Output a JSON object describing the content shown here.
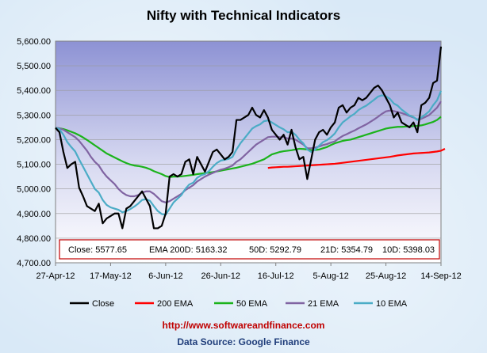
{
  "chart_data": {
    "type": "line",
    "title": "Nifty with Technical Indicators",
    "ylim": [
      4700,
      5600
    ],
    "yticks": [
      "5,600.00",
      "5,500.00",
      "5,400.00",
      "5,300.00",
      "5,200.00",
      "5,100.00",
      "5,000.00",
      "4,900.00",
      "4,800.00",
      "4,700.00"
    ],
    "ytick_values": [
      5600,
      5500,
      5400,
      5300,
      5200,
      5100,
      5000,
      4900,
      4800,
      4700
    ],
    "xticks": [
      "27-Apr-12",
      "17-May-12",
      "6-Jun-12",
      "26-Jun-12",
      "16-Jul-12",
      "5-Aug-12",
      "25-Aug-12",
      "14-Sep-12"
    ],
    "xtick_index": [
      0,
      14,
      28,
      42,
      56,
      70,
      84,
      98
    ],
    "n_points": 99,
    "grid": true,
    "legend_position": "bottom",
    "info_box": {
      "close": "Close: 5577.65",
      "ema200": "EMA  200D: 5163.32",
      "ema50": "50D: 5292.79",
      "ema21": "21D: 5354.79",
      "ema10": "10D: 5398.03"
    },
    "series": [
      {
        "name": "Close",
        "color": "#000000",
        "start": 0,
        "width": 2.2,
        "values": [
          5248,
          5230,
          5150,
          5085,
          5100,
          5110,
          5005,
          4970,
          4930,
          4920,
          4910,
          4940,
          4860,
          4880,
          4890,
          4900,
          4900,
          4840,
          4920,
          4930,
          4950,
          4970,
          4990,
          4960,
          4930,
          4840,
          4840,
          4850,
          4900,
          5050,
          5060,
          5050,
          5060,
          5110,
          5120,
          5060,
          5130,
          5100,
          5070,
          5110,
          5150,
          5160,
          5140,
          5120,
          5130,
          5150,
          5280,
          5280,
          5290,
          5300,
          5330,
          5300,
          5290,
          5320,
          5290,
          5240,
          5220,
          5200,
          5220,
          5180,
          5240,
          5170,
          5120,
          5130,
          5040,
          5120,
          5200,
          5230,
          5240,
          5220,
          5250,
          5270,
          5330,
          5340,
          5310,
          5330,
          5340,
          5370,
          5360,
          5370,
          5390,
          5410,
          5420,
          5400,
          5370,
          5340,
          5290,
          5310,
          5270,
          5260,
          5250,
          5270,
          5230,
          5340,
          5350,
          5370,
          5430,
          5440,
          5578
        ]
      },
      {
        "name": "200 EMA",
        "color": "#ff0000",
        "start": 54,
        "width": 2.2,
        "values": [
          5085,
          5087,
          5088,
          5089,
          5090,
          5090,
          5091,
          5092,
          5093,
          5094,
          5095,
          5096,
          5097,
          5098,
          5099,
          5100,
          5101,
          5102,
          5104,
          5106,
          5108,
          5110,
          5112,
          5114,
          5116,
          5118,
          5120,
          5122,
          5124,
          5126,
          5128,
          5130,
          5133,
          5136,
          5138,
          5140,
          5142,
          5144,
          5145,
          5146,
          5147,
          5148,
          5150,
          5152,
          5155,
          5163
        ]
      },
      {
        "name": "50 EMA",
        "color": "#1bb31b",
        "start": 0,
        "width": 2.2,
        "values": [
          5248,
          5246,
          5243,
          5238,
          5232,
          5226,
          5218,
          5209,
          5199,
          5188,
          5177,
          5166,
          5155,
          5144,
          5136,
          5128,
          5120,
          5112,
          5105,
          5099,
          5095,
          5093,
          5090,
          5086,
          5080,
          5072,
          5066,
          5060,
          5052,
          5048,
          5050,
          5050,
          5051,
          5053,
          5055,
          5057,
          5060,
          5062,
          5064,
          5066,
          5068,
          5071,
          5074,
          5077,
          5080,
          5083,
          5086,
          5090,
          5094,
          5098,
          5102,
          5108,
          5114,
          5120,
          5130,
          5140,
          5145,
          5150,
          5153,
          5155,
          5157,
          5160,
          5163,
          5162,
          5160,
          5157,
          5158,
          5160,
          5165,
          5170,
          5178,
          5185,
          5190,
          5195,
          5198,
          5200,
          5205,
          5210,
          5215,
          5220,
          5225,
          5230,
          5235,
          5240,
          5245,
          5248,
          5250,
          5252,
          5252,
          5253,
          5254,
          5255,
          5256,
          5258,
          5262,
          5267,
          5272,
          5280,
          5293
        ]
      },
      {
        "name": "21 EMA",
        "color": "#8064a2",
        "start": 0,
        "width": 2.2,
        "values": [
          5248,
          5246,
          5240,
          5230,
          5220,
          5210,
          5195,
          5175,
          5155,
          5130,
          5110,
          5095,
          5070,
          5050,
          5035,
          5020,
          5000,
          4985,
          4975,
          4970,
          4970,
          4975,
          4985,
          4990,
          4990,
          4980,
          4965,
          4950,
          4945,
          4950,
          4960,
          4970,
          4980,
          4995,
          5005,
          5015,
          5030,
          5040,
          5050,
          5058,
          5065,
          5072,
          5078,
          5082,
          5088,
          5095,
          5110,
          5120,
          5135,
          5150,
          5165,
          5180,
          5190,
          5200,
          5210,
          5212,
          5212,
          5210,
          5210,
          5205,
          5205,
          5200,
          5190,
          5180,
          5165,
          5165,
          5168,
          5172,
          5178,
          5182,
          5188,
          5193,
          5205,
          5215,
          5222,
          5230,
          5237,
          5246,
          5254,
          5262,
          5272,
          5282,
          5293,
          5305,
          5315,
          5318,
          5316,
          5312,
          5308,
          5302,
          5296,
          5290,
          5282,
          5285,
          5292,
          5300,
          5315,
          5330,
          5355
        ]
      },
      {
        "name": "10 EMA",
        "color": "#4bacc6",
        "start": 0,
        "width": 2.2,
        "values": [
          5248,
          5243,
          5220,
          5190,
          5170,
          5152,
          5120,
          5090,
          5060,
          5030,
          5000,
          4985,
          4955,
          4935,
          4925,
          4920,
          4915,
          4905,
          4910,
          4918,
          4928,
          4940,
          4955,
          4958,
          4952,
          4930,
          4910,
          4898,
          4895,
          4920,
          4945,
          4960,
          4975,
          5000,
          5018,
          5025,
          5045,
          5055,
          5060,
          5072,
          5090,
          5105,
          5115,
          5118,
          5122,
          5130,
          5160,
          5185,
          5205,
          5225,
          5245,
          5255,
          5262,
          5275,
          5278,
          5270,
          5260,
          5250,
          5242,
          5230,
          5232,
          5220,
          5200,
          5185,
          5160,
          5150,
          5160,
          5175,
          5190,
          5198,
          5210,
          5225,
          5250,
          5270,
          5282,
          5295,
          5305,
          5320,
          5330,
          5338,
          5350,
          5362,
          5375,
          5380,
          5376,
          5366,
          5347,
          5338,
          5322,
          5310,
          5298,
          5292,
          5280,
          5290,
          5302,
          5315,
          5340,
          5360,
          5398
        ]
      }
    ]
  },
  "footer": {
    "website": "http://www.softwareandfinance.com",
    "source": "Data Source: Google Finance"
  }
}
